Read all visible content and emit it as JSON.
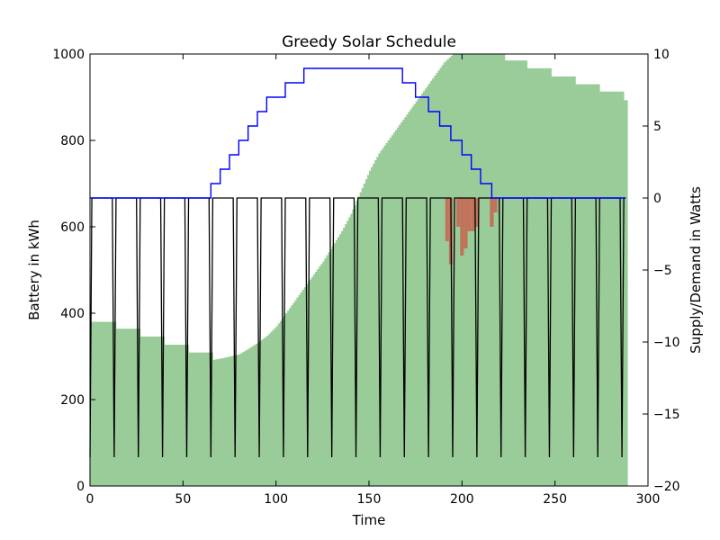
{
  "chart_data": {
    "type": "bar+line",
    "title": "Greedy Solar Schedule",
    "xlabel": "Time",
    "ylabel_left": "Battery in kWh",
    "ylabel_right": "Supply/Demand in Watts",
    "xlim": [
      0,
      300
    ],
    "ylim_left": [
      0,
      1000
    ],
    "ylim_right": [
      -20,
      10
    ],
    "x_ticks": [
      0,
      50,
      100,
      150,
      200,
      250,
      300
    ],
    "y_ticks_left": [
      0,
      200,
      400,
      600,
      800,
      1000
    ],
    "y_ticks_right": [
      -20,
      -15,
      -10,
      -5,
      0,
      5,
      10
    ],
    "grid": false,
    "colors": {
      "battery": "#99cc99",
      "deficit": "#c0735a",
      "supply": "#0000ff",
      "demand": "#000000"
    },
    "series": [
      {
        "kind": "battery-bars",
        "points": [
          [
            0,
            380
          ],
          [
            13,
            380
          ],
          [
            14,
            364
          ],
          [
            26,
            364
          ],
          [
            27,
            346
          ],
          [
            39,
            346
          ],
          [
            40,
            327
          ],
          [
            52,
            327
          ],
          [
            53,
            309
          ],
          [
            65,
            309
          ],
          [
            66,
            292
          ],
          [
            70,
            295
          ],
          [
            75,
            300
          ],
          [
            80,
            305
          ],
          [
            85,
            318
          ],
          [
            90,
            332
          ],
          [
            95,
            348
          ],
          [
            100,
            370
          ],
          [
            105,
            400
          ],
          [
            110,
            430
          ],
          [
            115,
            460
          ],
          [
            120,
            490
          ],
          [
            125,
            520
          ],
          [
            130,
            555
          ],
          [
            135,
            590
          ],
          [
            140,
            630
          ],
          [
            145,
            680
          ],
          [
            150,
            730
          ],
          [
            155,
            770
          ],
          [
            160,
            800
          ],
          [
            165,
            830
          ],
          [
            170,
            860
          ],
          [
            175,
            890
          ],
          [
            180,
            920
          ],
          [
            185,
            950
          ],
          [
            190,
            980
          ],
          [
            195,
            1000
          ],
          [
            222,
            1000
          ],
          [
            223,
            985
          ],
          [
            234,
            985
          ],
          [
            235,
            967
          ],
          [
            247,
            967
          ],
          [
            248,
            948
          ],
          [
            260,
            948
          ],
          [
            261,
            930
          ],
          [
            273,
            930
          ],
          [
            274,
            913
          ],
          [
            286,
            913
          ],
          [
            287,
            893
          ],
          [
            288,
            893
          ]
        ]
      },
      {
        "kind": "deficit-bars",
        "bars": [
          [
            191,
            0,
            -3
          ],
          [
            193,
            0,
            -4.6
          ],
          [
            197,
            0,
            -2
          ],
          [
            199,
            0,
            -4
          ],
          [
            201,
            0,
            -3.5
          ],
          [
            203,
            0,
            -2.3
          ],
          [
            205,
            0,
            -2.3
          ],
          [
            207,
            0,
            -2
          ],
          [
            215,
            0,
            -2
          ],
          [
            217,
            0,
            -1
          ]
        ]
      },
      {
        "kind": "supply-step",
        "points": [
          [
            0,
            0
          ],
          [
            65,
            0
          ],
          [
            65,
            1
          ],
          [
            70,
            1
          ],
          [
            70,
            2
          ],
          [
            75,
            2
          ],
          [
            75,
            3
          ],
          [
            80,
            3
          ],
          [
            80,
            4
          ],
          [
            85,
            4
          ],
          [
            85,
            5
          ],
          [
            90,
            5
          ],
          [
            90,
            6
          ],
          [
            95,
            6
          ],
          [
            95,
            7
          ],
          [
            100,
            7
          ],
          [
            100,
            7
          ],
          [
            105,
            7
          ],
          [
            105,
            8
          ],
          [
            110,
            8
          ],
          [
            110,
            8
          ],
          [
            115,
            8
          ],
          [
            115,
            9
          ],
          [
            120,
            9
          ],
          [
            120,
            9
          ],
          [
            168,
            9
          ],
          [
            168,
            8
          ],
          [
            175,
            8
          ],
          [
            175,
            7
          ],
          [
            182,
            7
          ],
          [
            182,
            6
          ],
          [
            188,
            6
          ],
          [
            188,
            5
          ],
          [
            194,
            5
          ],
          [
            194,
            4
          ],
          [
            200,
            4
          ],
          [
            200,
            3
          ],
          [
            205,
            3
          ],
          [
            205,
            2
          ],
          [
            210,
            2
          ],
          [
            210,
            1
          ],
          [
            216,
            1
          ],
          [
            216,
            0
          ],
          [
            288,
            0
          ]
        ]
      },
      {
        "kind": "demand-spikes",
        "period": 13,
        "count": 22,
        "low": -18,
        "high": 0,
        "x_start": 0,
        "x_end": 288
      }
    ]
  }
}
